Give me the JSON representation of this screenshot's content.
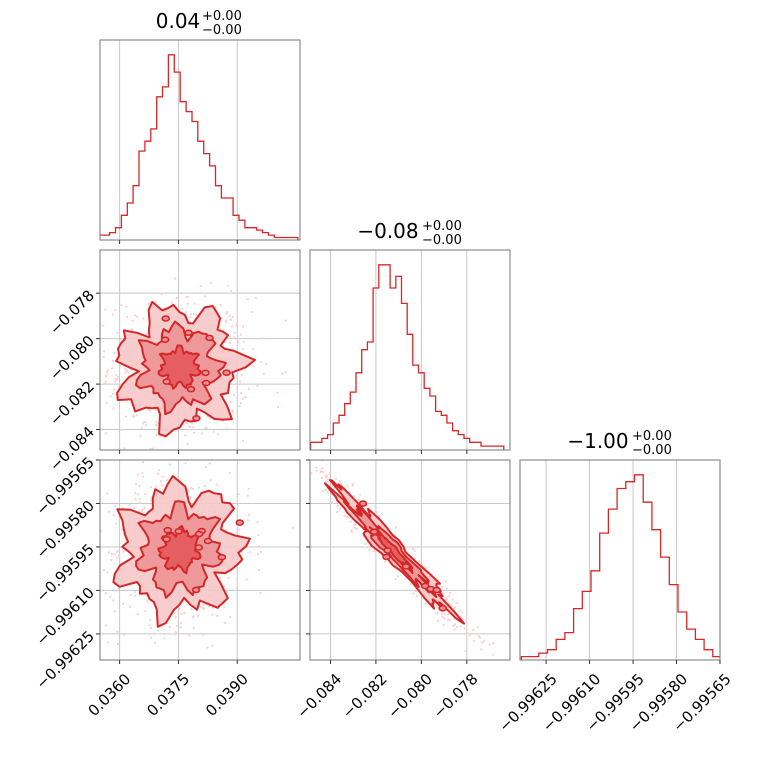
{
  "style": {
    "accent": "#d62728",
    "fill_light": "#f6c8c9",
    "fill_mid": "#ec8f92",
    "scatter": "#f7cfd1",
    "grid": "#c8c8c8"
  },
  "chart_data": {
    "type": "corner",
    "parameters": [
      {
        "title_value": "0.04",
        "title_plus": "+0.00",
        "title_minus": "−0.00",
        "range": [
          0.0355,
          0.0406
        ],
        "ticks": [
          0.036,
          0.0375,
          0.039
        ],
        "tick_labels": [
          "0.0360",
          "0.0375",
          "0.0390"
        ],
        "hist_x": [
          0.03552,
          0.03567,
          0.03582,
          0.03597,
          0.03612,
          0.03627,
          0.03642,
          0.03657,
          0.03672,
          0.03687,
          0.03702,
          0.03717,
          0.03732,
          0.03747,
          0.03762,
          0.03777,
          0.03792,
          0.03807,
          0.03822,
          0.03837,
          0.03852,
          0.03867,
          0.03882,
          0.03897,
          0.03912,
          0.03927,
          0.03942,
          0.03957,
          0.03972,
          0.03987,
          0.04002,
          0.04017,
          0.04032,
          0.04047
        ],
        "hist_counts": [
          2,
          2,
          3,
          5,
          10,
          15,
          22,
          36,
          40,
          45,
          58,
          62,
          75,
          68,
          56,
          52,
          48,
          40,
          35,
          30,
          22,
          17,
          17,
          10,
          8,
          5,
          5,
          4,
          3,
          2,
          1,
          1,
          1,
          1
        ]
      },
      {
        "title_value": "−0.08",
        "title_plus": "+0.00",
        "title_minus": "−0.00",
        "range": [
          -0.0849,
          -0.0761
        ],
        "ticks": [
          -0.084,
          -0.082,
          -0.08,
          -0.078
        ],
        "tick_labels": [
          "−0.084",
          "−0.082",
          "−0.080",
          "−0.078"
        ],
        "hist_x": [
          -0.08475,
          -0.0845,
          -0.08425,
          -0.084,
          -0.08375,
          -0.0835,
          -0.08325,
          -0.083,
          -0.08275,
          -0.0825,
          -0.08225,
          -0.082,
          -0.08175,
          -0.0815,
          -0.08125,
          -0.081,
          -0.08075,
          -0.0805,
          -0.08025,
          -0.08,
          -0.07975,
          -0.0795,
          -0.07925,
          -0.079,
          -0.07875,
          -0.0785,
          -0.07825,
          -0.078,
          -0.07775,
          -0.0775,
          -0.07725,
          -0.077,
          -0.07675,
          -0.0765
        ],
        "hist_counts": [
          2,
          2,
          3,
          4,
          7,
          9,
          12,
          15,
          20,
          26,
          28,
          42,
          48,
          48,
          42,
          45,
          38,
          30,
          22,
          20,
          16,
          14,
          10,
          9,
          7,
          5,
          4,
          3,
          2,
          2,
          1,
          1,
          1,
          1
        ]
      },
      {
        "title_value": "−1.00",
        "title_plus": "+0.00",
        "title_minus": "−0.00",
        "range": [
          -0.99634,
          -0.99565
        ],
        "ticks": [
          -0.99625,
          -0.9961,
          -0.99595,
          -0.9958,
          -0.99565
        ],
        "tick_labels": [
          "−0.99625",
          "−0.99610",
          "−0.99595",
          "−0.99580",
          "−0.99565"
        ],
        "hist_x": [
          -0.99632,
          -0.99629,
          -0.99626,
          -0.99623,
          -0.9962,
          -0.99617,
          -0.99614,
          -0.99611,
          -0.99608,
          -0.99605,
          -0.99602,
          -0.99599,
          -0.99596,
          -0.99593,
          -0.9959,
          -0.99587,
          -0.99584,
          -0.99581,
          -0.99578,
          -0.99575,
          -0.99572,
          -0.99569,
          -0.99566
        ],
        "hist_counts": [
          1,
          1,
          2,
          3,
          6,
          8,
          15,
          20,
          26,
          37,
          44,
          50,
          52,
          54,
          46,
          38,
          30,
          22,
          14,
          9,
          6,
          3,
          1
        ]
      }
    ],
    "histogram_style": "step",
    "grid": true
  }
}
